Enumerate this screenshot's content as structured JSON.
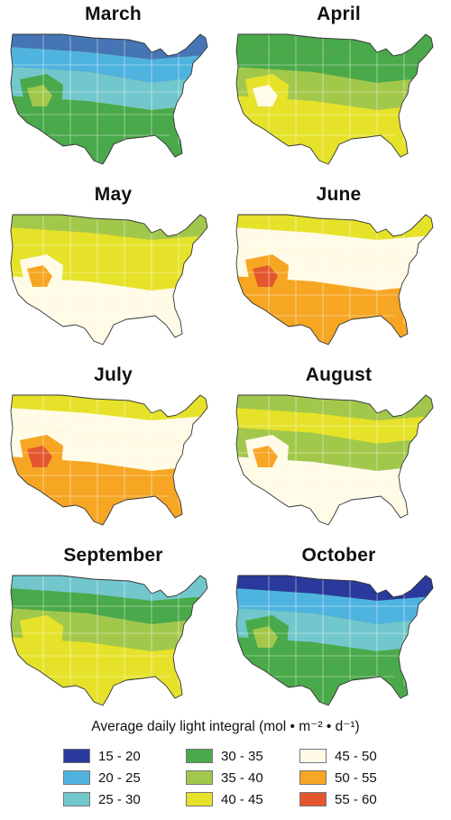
{
  "maps": [
    {
      "title": "March",
      "zones": [
        "#4575b4",
        "#4fb3e0",
        "#72c7cc",
        "#4aa94a",
        "#a2c84b",
        "#e6e22a"
      ]
    },
    {
      "title": "April",
      "zones": [
        "#4aa94a",
        "#4aa94a",
        "#a2c84b",
        "#e6e22a",
        "#fffbe6",
        "#a2c84b"
      ]
    },
    {
      "title": "May",
      "zones": [
        "#a2c84b",
        "#e6e22a",
        "#e6e22a",
        "#fffbe6",
        "#f6a623",
        "#e6e22a"
      ]
    },
    {
      "title": "June",
      "zones": [
        "#e6e22a",
        "#fffbe6",
        "#fffbe6",
        "#f6a623",
        "#e4572e",
        "#e6e22a"
      ]
    },
    {
      "title": "July",
      "zones": [
        "#e6e22a",
        "#fffbe6",
        "#fffbe6",
        "#f6a623",
        "#e4572e",
        "#e6e22a"
      ]
    },
    {
      "title": "August",
      "zones": [
        "#a2c84b",
        "#e6e22a",
        "#a2c84b",
        "#fffbe6",
        "#f6a623",
        "#4aa94a"
      ]
    },
    {
      "title": "September",
      "zones": [
        "#72c7cc",
        "#4aa94a",
        "#a2c84b",
        "#e6e22a",
        "#e6e22a",
        "#4aa94a"
      ]
    },
    {
      "title": "October",
      "zones": [
        "#2a3a9c",
        "#4fb3e0",
        "#72c7cc",
        "#4aa94a",
        "#a2c84b",
        "#4aa94a"
      ]
    }
  ],
  "legend": {
    "title": "Average daily light integral (mol • m⁻² • d⁻¹)",
    "items": [
      {
        "label": "15 - 20",
        "color": "#2a3a9c"
      },
      {
        "label": "20 - 25",
        "color": "#4fb3e0"
      },
      {
        "label": "25 - 30",
        "color": "#72c7cc"
      },
      {
        "label": "30 - 35",
        "color": "#4aa94a"
      },
      {
        "label": "35 - 40",
        "color": "#a2c84b"
      },
      {
        "label": "40 - 45",
        "color": "#e6e22a"
      },
      {
        "label": "45 - 50",
        "color": "#fffbe6"
      },
      {
        "label": "50 - 55",
        "color": "#f6a623"
      },
      {
        "label": "55 - 60",
        "color": "#e4572e"
      }
    ]
  }
}
